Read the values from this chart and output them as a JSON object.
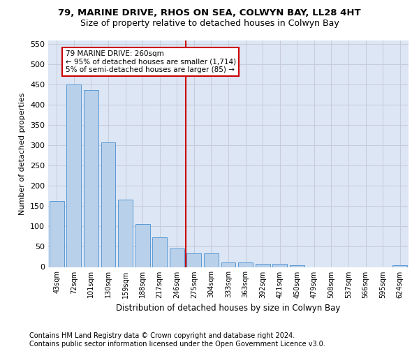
{
  "title": "79, MARINE DRIVE, RHOS ON SEA, COLWYN BAY, LL28 4HT",
  "subtitle": "Size of property relative to detached houses in Colwyn Bay",
  "xlabel": "Distribution of detached houses by size in Colwyn Bay",
  "ylabel": "Number of detached properties",
  "categories": [
    "43sqm",
    "72sqm",
    "101sqm",
    "130sqm",
    "159sqm",
    "188sqm",
    "217sqm",
    "246sqm",
    "275sqm",
    "304sqm",
    "333sqm",
    "363sqm",
    "392sqm",
    "421sqm",
    "450sqm",
    "479sqm",
    "508sqm",
    "537sqm",
    "566sqm",
    "595sqm",
    "624sqm"
  ],
  "values": [
    163,
    450,
    437,
    307,
    167,
    106,
    73,
    45,
    33,
    33,
    11,
    11,
    8,
    8,
    5,
    0,
    0,
    0,
    0,
    0,
    5
  ],
  "bar_color": "#b8d0ea",
  "bar_edge_color": "#5b9bd5",
  "vline_color": "#cc0000",
  "annotation_text_line1": "79 MARINE DRIVE: 260sqm",
  "annotation_text_line2": "← 95% of detached houses are smaller (1,714)",
  "annotation_text_line3": "5% of semi-detached houses are larger (85) →",
  "annotation_box_color": "#ffffff",
  "annotation_box_edge": "#cc0000",
  "ylim": [
    0,
    560
  ],
  "yticks": [
    0,
    50,
    100,
    150,
    200,
    250,
    300,
    350,
    400,
    450,
    500,
    550
  ],
  "grid_color": "#c8ccd8",
  "bg_color": "#dce6f5",
  "footer": "Contains HM Land Registry data © Crown copyright and database right 2024.\nContains public sector information licensed under the Open Government Licence v3.0.",
  "title_fontsize": 9.5,
  "subtitle_fontsize": 9,
  "footer_fontsize": 7,
  "vline_pos": 7.5
}
